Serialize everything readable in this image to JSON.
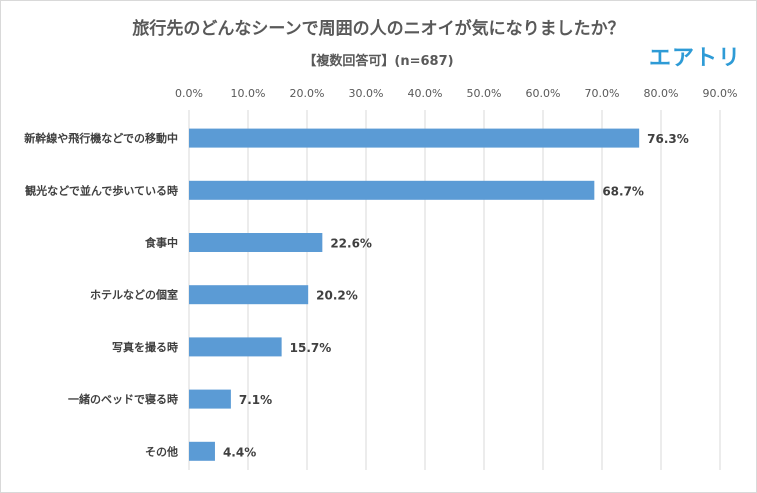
{
  "logo": "エアトリ",
  "chart_data": {
    "type": "bar",
    "orientation": "horizontal",
    "title": "旅行先のどんなシーンで周囲の人のニオイが気になりましたか？",
    "subtitle": "【複数回答可】(n=687)",
    "categories": [
      "新幹線や飛行機などでの移動中",
      "観光などで並んで歩いている時",
      "食事中",
      "ホテルなどの個室",
      "写真を撮る時",
      "一緒のベッドで寝る時",
      "その他"
    ],
    "values": [
      76.3,
      68.7,
      22.6,
      20.2,
      15.7,
      7.1,
      4.4
    ],
    "value_labels": [
      "76.3%",
      "68.7%",
      "22.6%",
      "20.2%",
      "15.7%",
      "7.1%",
      "4.4%"
    ],
    "ticks": [
      0,
      10,
      20,
      30,
      40,
      50,
      60,
      70,
      80,
      90
    ],
    "tick_labels": [
      "0.0%",
      "10.0%",
      "20.0%",
      "30.0%",
      "40.0%",
      "50.0%",
      "60.0%",
      "70.0%",
      "80.0%",
      "90.0%"
    ],
    "xlim": [
      0,
      90
    ],
    "grid": true,
    "bar_color": "#5b9bd5",
    "grid_color": "#d9d9d9"
  }
}
